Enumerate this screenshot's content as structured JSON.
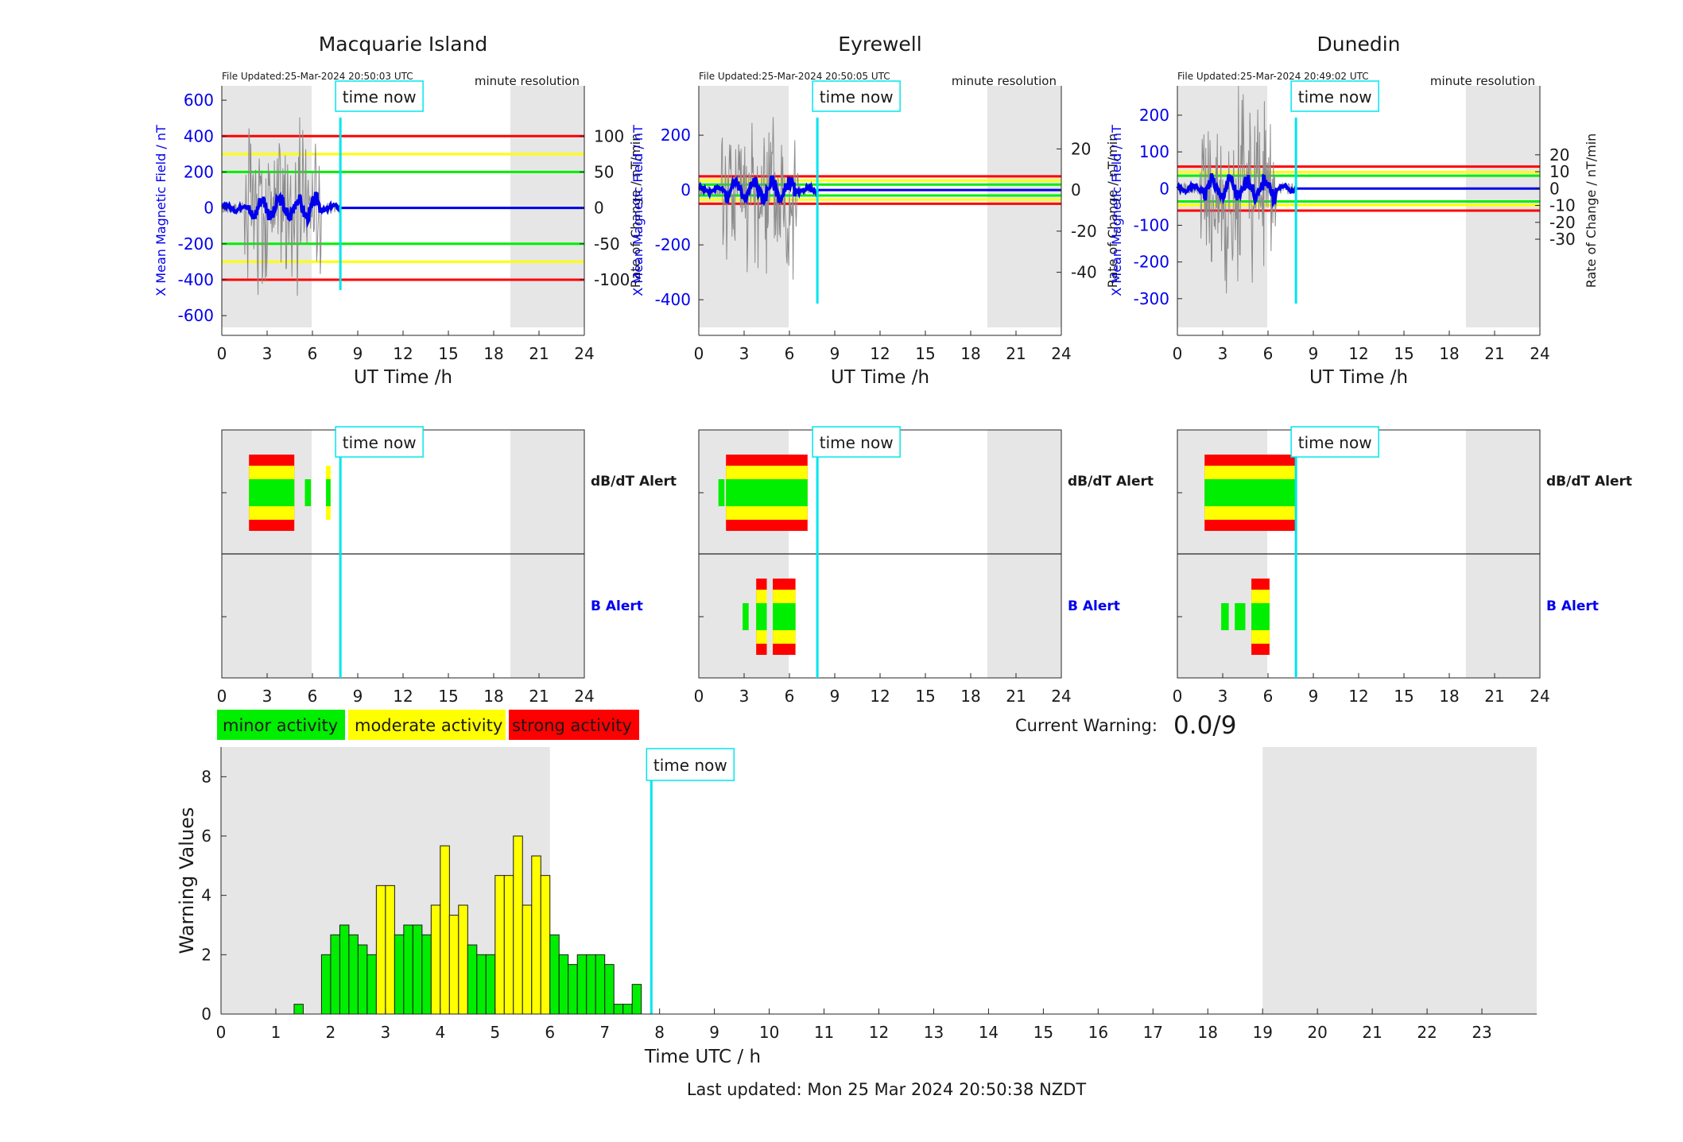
{
  "colors": {
    "minor": "#00ee00",
    "moderate": "#ffff00",
    "strong": "#ff0000",
    "field": "#0000ee",
    "time_now": "#00e5ee",
    "night": "#e6e6e6",
    "raw": "#8c8c8c"
  },
  "stations": [
    {
      "name": "Macquarie Island",
      "file_updated": "File Updated:25-Mar-2024 20:50:03 UTC",
      "resolution": "minute resolution",
      "ylabel_left": "X Mean Magnetic Field / nT",
      "ylabel_right": "Rate of Change / nT/min",
      "left_ticks": [
        600,
        400,
        200,
        0,
        -200,
        -400,
        -600
      ],
      "left_range": [
        -710,
        680
      ],
      "right_ticks": [
        100,
        50,
        0,
        -50,
        -100
      ],
      "thresholds": {
        "minor": 200,
        "moderate": 300,
        "strong": 400
      },
      "dbdt_bars": [
        {
          "start": 1.8,
          "end": 4.8,
          "level": 3
        },
        {
          "start": 5.5,
          "end": 5.9,
          "level": 1
        },
        {
          "start": 6.9,
          "end": 7.2,
          "level": 2
        }
      ],
      "b_bars": []
    },
    {
      "name": "Eyrewell",
      "file_updated": "File Updated:25-Mar-2024 20:50:05 UTC",
      "resolution": "minute resolution",
      "ylabel_left": "X Mean Magnetic Field / nT",
      "ylabel_right": "Rate of Change / nT/min",
      "left_ticks": [
        200,
        0,
        -200,
        -400
      ],
      "left_range": [
        -530,
        380
      ],
      "right_ticks": [
        20,
        0,
        -20,
        -40
      ],
      "thresholds": {
        "minor": 20,
        "moderate": 35,
        "strong": 50
      },
      "dbdt_bars": [
        {
          "start": 1.3,
          "end": 1.7,
          "level": 1
        },
        {
          "start": 1.8,
          "end": 7.2,
          "level": 3
        }
      ],
      "b_bars": [
        {
          "start": 2.9,
          "end": 3.3,
          "level": 1
        },
        {
          "start": 3.8,
          "end": 4.5,
          "level": 3
        },
        {
          "start": 4.9,
          "end": 6.4,
          "level": 3
        }
      ]
    },
    {
      "name": "Dunedin",
      "file_updated": "File Updated:25-Mar-2024 20:49:02 UTC",
      "resolution": "minute resolution",
      "ylabel_left": "X Mean Magnetic Field / nT",
      "ylabel_right": "Rate of Change / nT/min",
      "left_ticks": [
        200,
        100,
        0,
        -100,
        -200,
        -300
      ],
      "left_range": [
        -400,
        280
      ],
      "right_ticks": [
        20,
        10,
        0,
        -10,
        -20,
        -30
      ],
      "thresholds": {
        "minor": 35,
        "moderate": 45,
        "strong": 60
      },
      "dbdt_bars": [
        {
          "start": 1.8,
          "end": 7.8,
          "level": 3
        }
      ],
      "b_bars": [
        {
          "start": 2.9,
          "end": 3.4,
          "level": 1
        },
        {
          "start": 3.8,
          "end": 4.5,
          "level": 1
        },
        {
          "start": 4.9,
          "end": 6.1,
          "level": 3
        }
      ]
    }
  ],
  "shared": {
    "xlabel": "UT Time /h",
    "x_ticks": [
      0,
      3,
      6,
      9,
      12,
      15,
      18,
      21,
      24
    ],
    "time_now_label": "time now",
    "time_now_hour": 7.85,
    "night_periods": [
      [
        0,
        5.95
      ],
      [
        19.1,
        24
      ]
    ],
    "dbdt_alert_label": "dB/dT Alert",
    "b_alert_label": "B Alert"
  },
  "legend": [
    {
      "label": "minor activity",
      "level": "minor"
    },
    {
      "label": "moderate activity",
      "level": "moderate"
    },
    {
      "label": "strong activity",
      "level": "strong"
    }
  ],
  "current_warning": {
    "label": "Current Warning:",
    "value": "0.0/9"
  },
  "chart_data": {
    "type": "bar",
    "xlabel": "Time UTC / h",
    "ylabel": "Warning Values",
    "xlim": [
      0,
      24
    ],
    "ylim": [
      0,
      9
    ],
    "x_ticks": [
      0,
      1,
      2,
      3,
      4,
      5,
      6,
      7,
      8,
      9,
      10,
      11,
      12,
      13,
      14,
      15,
      16,
      17,
      18,
      19,
      20,
      21,
      22,
      23
    ],
    "y_ticks": [
      0,
      2,
      4,
      6,
      8
    ],
    "bar_width_h": 0.1667,
    "night_periods": [
      [
        0,
        6.0
      ],
      [
        19.0,
        24.0
      ]
    ],
    "time_now_hour": 7.85,
    "time_now_label": "time now",
    "bars": [
      {
        "t": 1.333,
        "v": 0.33,
        "level": "minor"
      },
      {
        "t": 1.833,
        "v": 2.0,
        "level": "minor"
      },
      {
        "t": 2.0,
        "v": 2.67,
        "level": "minor"
      },
      {
        "t": 2.167,
        "v": 3.0,
        "level": "minor"
      },
      {
        "t": 2.333,
        "v": 2.67,
        "level": "minor"
      },
      {
        "t": 2.5,
        "v": 2.33,
        "level": "minor"
      },
      {
        "t": 2.667,
        "v": 2.0,
        "level": "minor"
      },
      {
        "t": 2.833,
        "v": 4.33,
        "level": "moderate"
      },
      {
        "t": 3.0,
        "v": 4.33,
        "level": "moderate"
      },
      {
        "t": 3.167,
        "v": 2.67,
        "level": "minor"
      },
      {
        "t": 3.333,
        "v": 3.0,
        "level": "minor"
      },
      {
        "t": 3.5,
        "v": 3.0,
        "level": "minor"
      },
      {
        "t": 3.667,
        "v": 2.67,
        "level": "minor"
      },
      {
        "t": 3.833,
        "v": 3.67,
        "level": "moderate"
      },
      {
        "t": 4.0,
        "v": 5.67,
        "level": "moderate"
      },
      {
        "t": 4.167,
        "v": 3.33,
        "level": "moderate"
      },
      {
        "t": 4.333,
        "v": 3.67,
        "level": "moderate"
      },
      {
        "t": 4.5,
        "v": 2.33,
        "level": "minor"
      },
      {
        "t": 4.667,
        "v": 2.0,
        "level": "minor"
      },
      {
        "t": 4.833,
        "v": 2.0,
        "level": "minor"
      },
      {
        "t": 5.0,
        "v": 4.67,
        "level": "moderate"
      },
      {
        "t": 5.167,
        "v": 4.67,
        "level": "moderate"
      },
      {
        "t": 5.333,
        "v": 6.0,
        "level": "moderate"
      },
      {
        "t": 5.5,
        "v": 3.67,
        "level": "moderate"
      },
      {
        "t": 5.667,
        "v": 5.33,
        "level": "moderate"
      },
      {
        "t": 5.833,
        "v": 4.67,
        "level": "moderate"
      },
      {
        "t": 6.0,
        "v": 2.67,
        "level": "minor"
      },
      {
        "t": 6.167,
        "v": 2.0,
        "level": "minor"
      },
      {
        "t": 6.333,
        "v": 1.67,
        "level": "minor"
      },
      {
        "t": 6.5,
        "v": 2.0,
        "level": "minor"
      },
      {
        "t": 6.667,
        "v": 2.0,
        "level": "minor"
      },
      {
        "t": 6.833,
        "v": 2.0,
        "level": "minor"
      },
      {
        "t": 7.0,
        "v": 1.67,
        "level": "minor"
      },
      {
        "t": 7.167,
        "v": 0.33,
        "level": "minor"
      },
      {
        "t": 7.333,
        "v": 0.33,
        "level": "minor"
      },
      {
        "t": 7.5,
        "v": 1.0,
        "level": "minor"
      }
    ]
  },
  "footer": {
    "last_updated": "Last updated: Mon 25 Mar 2024 20:50:38 NZDT"
  }
}
